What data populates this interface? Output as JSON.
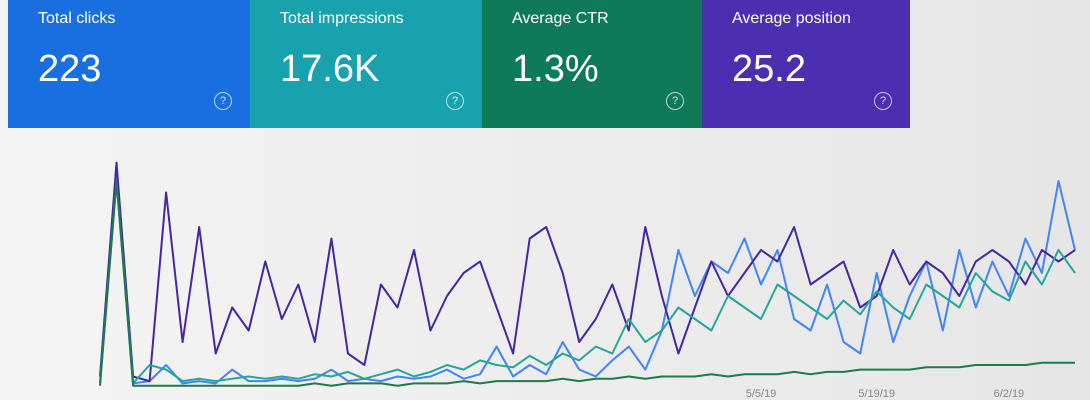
{
  "cards": [
    {
      "title": "Total clicks",
      "value": "223",
      "color": "#1a6fe0"
    },
    {
      "title": "Total impressions",
      "value": "17.6K",
      "color": "#17a2ae"
    },
    {
      "title": "Average CTR",
      "value": "1.3%",
      "color": "#0f7a58"
    },
    {
      "title": "Average position",
      "value": "25.2",
      "color": "#4a2fb0"
    }
  ],
  "chart_data": {
    "type": "line",
    "categories": [
      null,
      null,
      null,
      null,
      null,
      null,
      null,
      null,
      null,
      null,
      null,
      null,
      null,
      null,
      null,
      null,
      null,
      null,
      null,
      null,
      null,
      null,
      null,
      null,
      null,
      null,
      null,
      null,
      null,
      null,
      null,
      null,
      null,
      null,
      null,
      null,
      null,
      null,
      null,
      null,
      "5/5/19",
      null,
      null,
      null,
      null,
      null,
      null,
      "5/19/19",
      null,
      null,
      null,
      null,
      null,
      null,
      null,
      "6/2/19",
      null,
      null,
      null,
      null
    ],
    "series": [
      {
        "color": "#4285f4",
        "values": [
          2,
          95,
          2,
          3,
          10,
          2,
          3,
          2,
          8,
          3,
          3,
          4,
          3,
          4,
          8,
          3,
          4,
          3,
          5,
          4,
          5,
          8,
          4,
          6,
          18,
          5,
          10,
          6,
          20,
          8,
          5,
          12,
          18,
          8,
          25,
          60,
          40,
          55,
          50,
          65,
          45,
          60,
          30,
          25,
          45,
          20,
          15,
          50,
          20,
          40,
          55,
          25,
          60,
          35,
          55,
          40,
          65,
          50,
          90,
          60
        ]
      },
      {
        "color": "#4527a0",
        "values": [
          5,
          98,
          5,
          3,
          85,
          20,
          70,
          15,
          35,
          25,
          55,
          30,
          45,
          20,
          65,
          15,
          10,
          45,
          35,
          60,
          25,
          40,
          50,
          55,
          35,
          15,
          65,
          70,
          50,
          20,
          30,
          45,
          25,
          70,
          40,
          15,
          35,
          55,
          40,
          50,
          60,
          55,
          70,
          45,
          50,
          55,
          35,
          40,
          60,
          45,
          55,
          50,
          40,
          55,
          60,
          55,
          45,
          60,
          55,
          60
        ]
      },
      {
        "color": "#26a69a",
        "values": [
          2,
          90,
          2,
          10,
          8,
          3,
          4,
          3,
          4,
          5,
          4,
          5,
          4,
          6,
          5,
          7,
          4,
          6,
          8,
          5,
          7,
          10,
          8,
          12,
          10,
          9,
          14,
          10,
          15,
          12,
          18,
          15,
          30,
          20,
          25,
          35,
          30,
          25,
          40,
          35,
          30,
          45,
          40,
          35,
          30,
          38,
          32,
          42,
          35,
          30,
          45,
          40,
          35,
          50,
          42,
          38,
          55,
          45,
          60,
          50
        ]
      },
      {
        "color": "#1e7a4a",
        "values": [
          1,
          90,
          1,
          1,
          1,
          1,
          1,
          1,
          1,
          1,
          1,
          1,
          1,
          2,
          1,
          2,
          2,
          2,
          1,
          2,
          2,
          2,
          3,
          2,
          3,
          3,
          3,
          3,
          4,
          3,
          4,
          4,
          5,
          4,
          5,
          5,
          5,
          6,
          5,
          6,
          6,
          6,
          7,
          6,
          7,
          7,
          8,
          8,
          8,
          8,
          9,
          9,
          9,
          10,
          10,
          10,
          10,
          11,
          11,
          11
        ]
      }
    ]
  }
}
